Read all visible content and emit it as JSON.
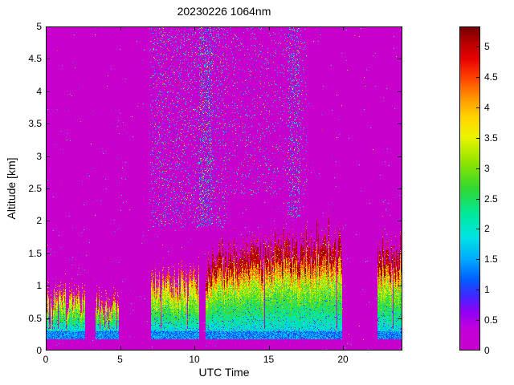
{
  "figure": {
    "title": "20230226 1064nm",
    "xlabel": "UTC Time",
    "ylabel": "Altitude [km]"
  },
  "chart_data": {
    "type": "heatmap",
    "title": "20230226 1064nm",
    "xlabel": "UTC Time",
    "ylabel": "Altitude [km]",
    "x_range": [
      0,
      24
    ],
    "x_ticks": [
      0,
      5,
      10,
      15,
      20
    ],
    "y_range": [
      0,
      5
    ],
    "y_ticks": [
      0,
      0.5,
      1,
      1.5,
      2,
      2.5,
      3,
      3.5,
      4,
      4.5,
      5
    ],
    "grid": false,
    "legend": "colorbar-right",
    "colorbar": {
      "range": [
        0,
        5.33
      ],
      "ticks": [
        0,
        0.5,
        1,
        1.5,
        2,
        2.5,
        3,
        3.5,
        4,
        4.5,
        5
      ]
    },
    "background_value": 0,
    "colormap": [
      [
        0.0,
        "#c800cc"
      ],
      [
        0.07,
        "#c000dc"
      ],
      [
        0.12,
        "#9000f4"
      ],
      [
        0.17,
        "#3c28ff"
      ],
      [
        0.22,
        "#0060ff"
      ],
      [
        0.28,
        "#00a8ff"
      ],
      [
        0.35,
        "#00e4e4"
      ],
      [
        0.42,
        "#00e89c"
      ],
      [
        0.5,
        "#30d830"
      ],
      [
        0.58,
        "#90e400"
      ],
      [
        0.66,
        "#ecf400"
      ],
      [
        0.72,
        "#ffd400"
      ],
      [
        0.78,
        "#ff9400"
      ],
      [
        0.84,
        "#ff4400"
      ],
      [
        0.9,
        "#e80000"
      ],
      [
        0.95,
        "#b80000"
      ],
      [
        1.0,
        "#700000"
      ]
    ],
    "overlap_zone": {
      "alt_below_km": 0.17,
      "value": 0
    },
    "base_layer": {
      "alt_bottom_km": 0.17,
      "alt_top_km": 0.3,
      "value_min": 0.9,
      "value_max": 1.8
    },
    "aerosol_segments": [
      {
        "t_start": 0.05,
        "t_end": 2.65,
        "top_start": 0.95,
        "top_end": 0.95,
        "amp": 0.45,
        "gap_prob": 0.1,
        "gain": 2.2,
        "dark_top": false,
        "rise": 1.0
      },
      {
        "t_start": 3.35,
        "t_end": 4.9,
        "top_start": 0.9,
        "top_end": 0.8,
        "amp": 0.45,
        "gap_prob": 0.1,
        "gain": 2.1,
        "dark_top": false,
        "rise": 1.0
      },
      {
        "t_start": 7.1,
        "t_end": 10.35,
        "top_start": 1.2,
        "top_end": 1.3,
        "amp": 0.35,
        "gap_prob": 0.05,
        "gain": 2.4,
        "dark_top": false,
        "rise": 1.0
      },
      {
        "t_start": 10.75,
        "t_end": 19.95,
        "top_start": 1.25,
        "top_end": 1.85,
        "amp": 0.28,
        "gap_prob": 0.03,
        "gain": 2.6,
        "dark_top": true,
        "rise": 0.35
      },
      {
        "t_start": 22.3,
        "t_end": 24.0,
        "top_start": 1.55,
        "top_end": 1.65,
        "amp": 0.25,
        "gap_prob": 0.05,
        "gain": 2.6,
        "dark_top": true,
        "rise": 1.0
      }
    ],
    "noise_regions": [
      {
        "t_start": 0.0,
        "t_end": 24.0,
        "alt_min": 0.0,
        "alt_max": 5.0,
        "density": 0.004
      },
      {
        "t_start": 7.0,
        "t_end": 12.2,
        "alt_min": 1.9,
        "alt_max": 5.0,
        "density": 0.14
      },
      {
        "t_start": 12.2,
        "t_end": 17.6,
        "alt_min": 2.4,
        "alt_max": 5.0,
        "density": 0.07
      },
      {
        "t_start": 10.3,
        "t_end": 11.2,
        "alt_min": 1.9,
        "alt_max": 5.0,
        "density": 0.3
      },
      {
        "t_start": 16.3,
        "t_end": 17.1,
        "alt_min": 2.0,
        "alt_max": 5.0,
        "density": 0.25
      }
    ]
  }
}
